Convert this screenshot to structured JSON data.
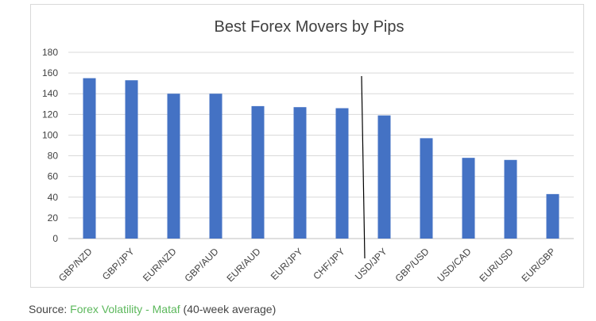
{
  "chart_data": {
    "type": "bar",
    "title": "Best Forex Movers by Pips",
    "categories": [
      "GBP/NZD",
      "GBP/JPY",
      "EUR/NZD",
      "GBP/AUD",
      "EUR/AUD",
      "EUR/JPY",
      "CHF/JPY",
      "USD/JPY",
      "GBP/USD",
      "USD/CAD",
      "EUR/USD",
      "EUR/GBP"
    ],
    "values": [
      155,
      153,
      140,
      140,
      128,
      127,
      126,
      119,
      97,
      78,
      76,
      43
    ],
    "ylim": [
      0,
      180
    ],
    "yticks": [
      0,
      20,
      40,
      60,
      80,
      100,
      120,
      140,
      160,
      180
    ],
    "xlabel": "",
    "ylabel": "",
    "grid": true,
    "bar_color": "#4472c4",
    "divider_between": [
      "CHF/JPY",
      "USD/JPY"
    ]
  },
  "source": {
    "prefix": "Source: ",
    "link_text": "Forex Volatility - Mataf",
    "suffix": " (40-week average)",
    "link_color": "#5cb85c"
  }
}
